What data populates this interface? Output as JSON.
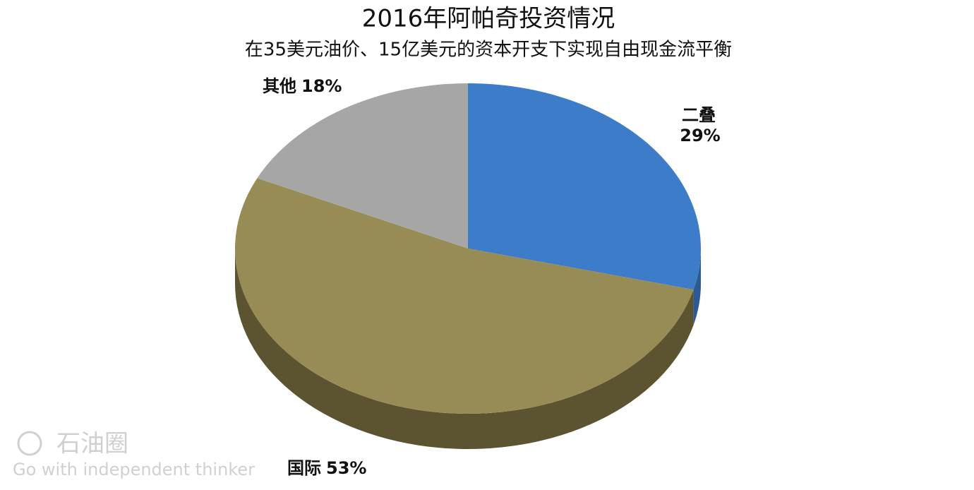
{
  "chart_data": {
    "type": "pie",
    "title": "2016年阿帕奇投资情况",
    "subtitle": "在35美元油价、15亿美元的资本开支下实现自由现金流平衡",
    "categories": [
      "二叠",
      "国际",
      "其他"
    ],
    "values": [
      29,
      53,
      18
    ],
    "value_labels": [
      "29%",
      "53%",
      "18%"
    ],
    "colors": [
      "#3d7cc9",
      "#978b56",
      "#a6a6a6"
    ],
    "side_colors": [
      "#2c5a92",
      "#5c5331",
      "#777777"
    ]
  },
  "watermark": {
    "name": "石油圈",
    "slogan": "Go with independent thinker"
  }
}
